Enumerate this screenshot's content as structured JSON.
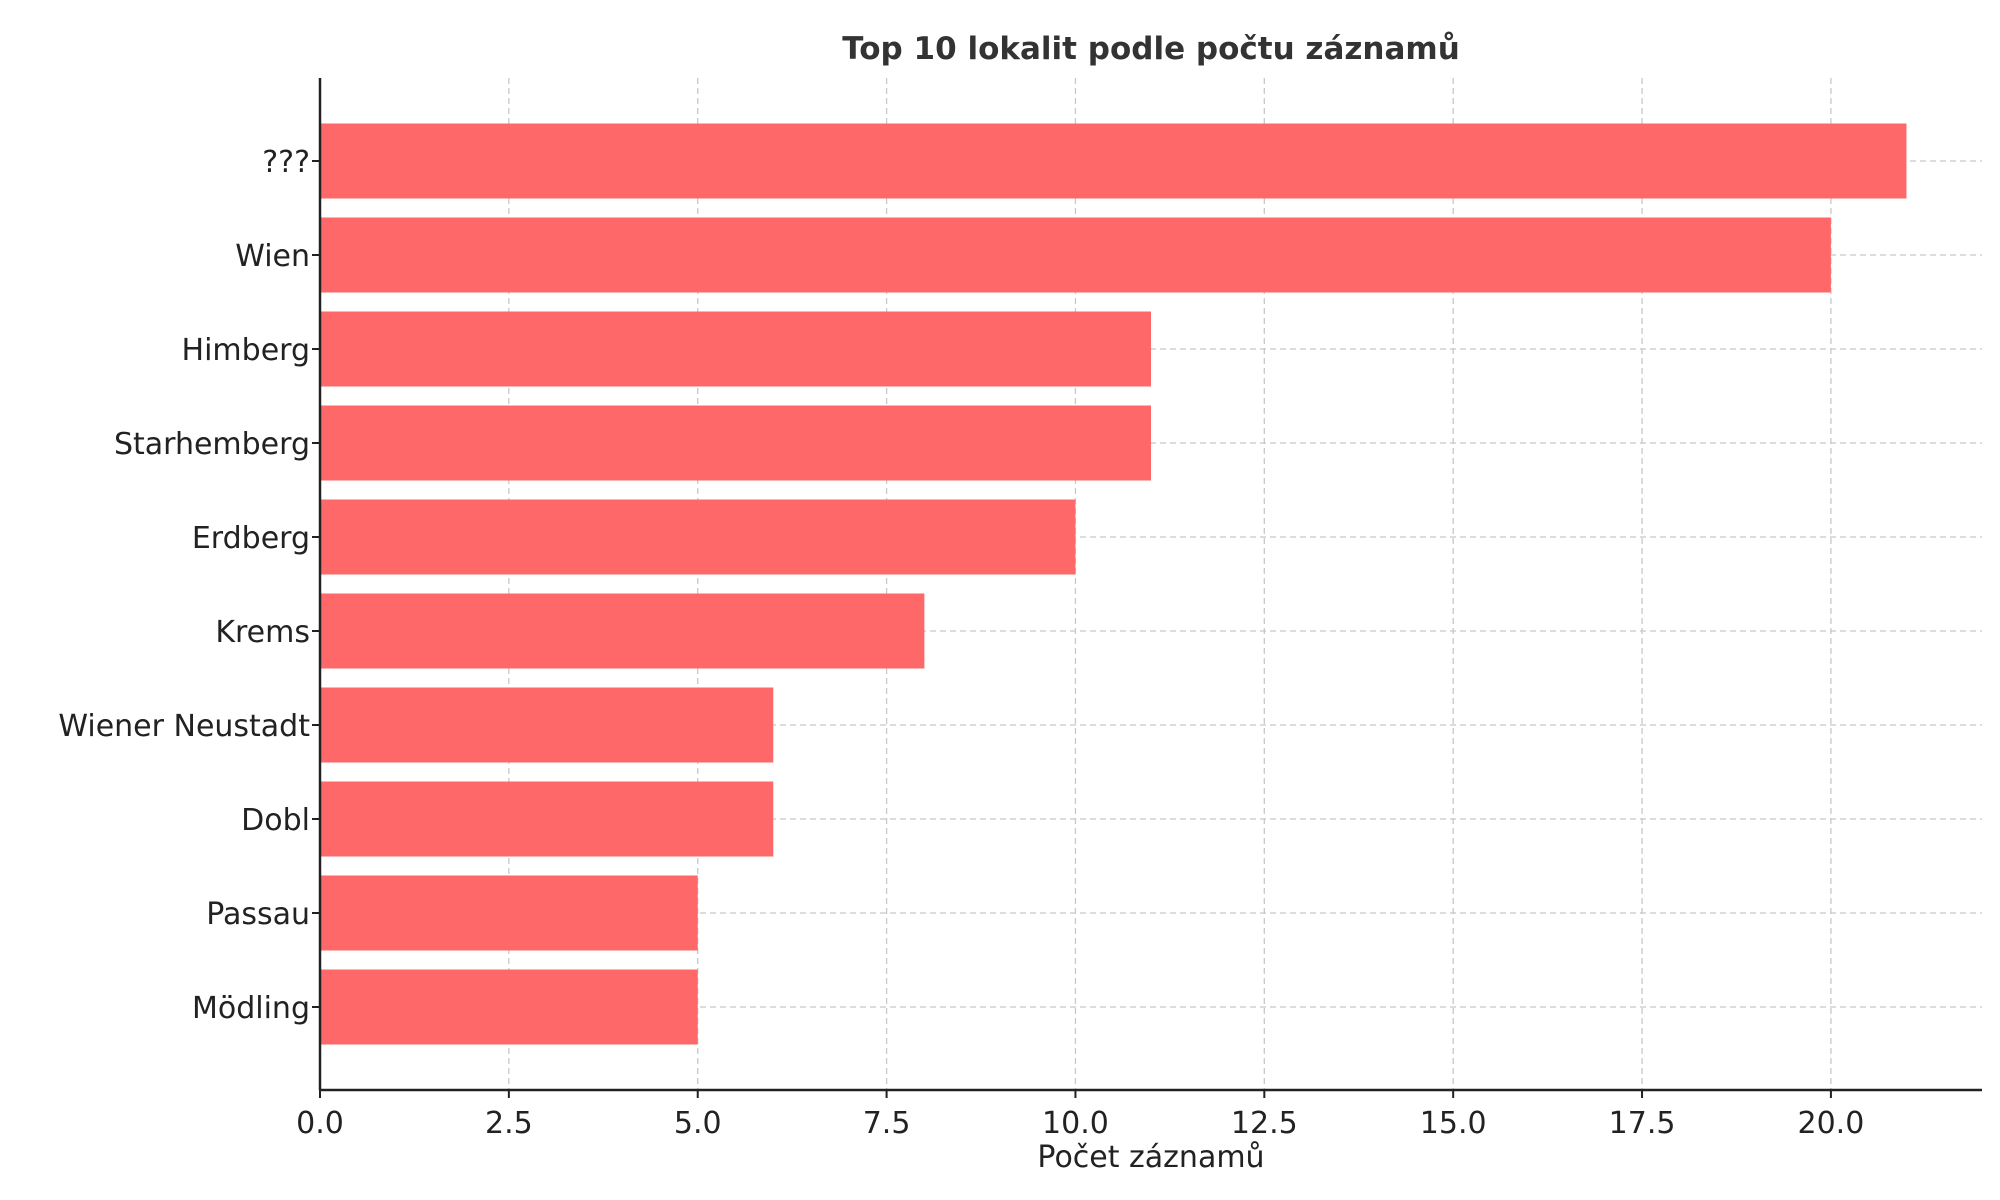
{
  "chart_data": {
    "type": "bar",
    "orientation": "horizontal",
    "title": "Top 10 lokalit podle počtu záznamů",
    "xlabel": "Počet záznamů",
    "ylabel": "",
    "categories": [
      "???",
      "Wien",
      "Himberg",
      "Starhemberg",
      "Erdberg",
      "Krems",
      "Wiener Neustadt",
      "Dobl",
      "Passau",
      "Mödling"
    ],
    "values": [
      21,
      20,
      11,
      11,
      10,
      8,
      6,
      6,
      5,
      5
    ],
    "xlim": [
      0,
      22
    ],
    "xticks": [
      "0.0",
      "2.5",
      "5.0",
      "7.5",
      "10.0",
      "12.5",
      "15.0",
      "17.5",
      "20.0"
    ],
    "grid": true,
    "bar_color": "#ff6868"
  }
}
